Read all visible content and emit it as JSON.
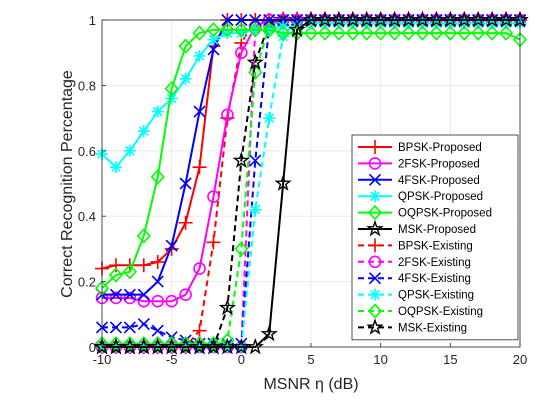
{
  "chart_data": {
    "type": "line",
    "xlabel": "MSNR η (dB)",
    "ylabel": "Correct Recognition Percentage",
    "xlim": [
      -10,
      20
    ],
    "ylim": [
      0,
      1
    ],
    "xticks": [
      -10,
      -5,
      0,
      5,
      10,
      15,
      20
    ],
    "yticks": [
      0,
      0.2,
      0.4,
      0.6,
      0.8,
      1
    ],
    "xtick_labels": [
      "-10",
      "-5",
      "0",
      "5",
      "10",
      "15",
      "20"
    ],
    "ytick_labels": [
      "0",
      "0.2",
      "0.4",
      "0.6",
      "0.8",
      "1"
    ],
    "grid": true,
    "legend_position": "bottom-right",
    "series": [
      {
        "name": "BPSK-Proposed",
        "color": "#ff0000",
        "dash": "solid",
        "marker": "plus",
        "x": [
          -10,
          -9,
          -8,
          -7,
          -6,
          -5,
          -4,
          -3,
          -2,
          -1,
          0,
          1,
          2,
          3,
          4,
          5,
          6,
          7,
          8,
          9,
          10,
          11,
          12,
          13,
          14,
          15,
          16,
          17,
          18,
          19,
          20
        ],
        "y": [
          0.24,
          0.25,
          0.25,
          0.25,
          0.26,
          0.3,
          0.38,
          0.55,
          0.92,
          1,
          1,
          1,
          1,
          1,
          1,
          1,
          1,
          1,
          1,
          1,
          1,
          1,
          1,
          1,
          1,
          1,
          1,
          1,
          1,
          1,
          1
        ]
      },
      {
        "name": "2FSK-Proposed",
        "color": "#ff00ff",
        "dash": "solid",
        "marker": "circle",
        "x": [
          -10,
          -9,
          -8,
          -7,
          -6,
          -5,
          -4,
          -3,
          -2,
          -1,
          0,
          1,
          2,
          3,
          4,
          5,
          6,
          7,
          8,
          9,
          10,
          11,
          12,
          13,
          14,
          15,
          16,
          17,
          18,
          19,
          20
        ],
        "y": [
          0.15,
          0.15,
          0.15,
          0.14,
          0.14,
          0.14,
          0.16,
          0.24,
          0.46,
          0.71,
          0.9,
          0.98,
          1,
          1,
          1,
          1,
          1,
          1,
          1,
          1,
          1,
          1,
          1,
          1,
          1,
          1,
          1,
          1,
          1,
          1,
          1
        ]
      },
      {
        "name": "4FSK-Proposed",
        "color": "#0000ff",
        "dash": "solid",
        "marker": "x",
        "x": [
          -10,
          -9,
          -8,
          -7,
          -6,
          -5,
          -4,
          -3,
          -2,
          -1,
          0,
          1,
          2,
          3,
          4,
          5,
          6,
          7,
          8,
          9,
          10,
          11,
          12,
          13,
          14,
          15,
          16,
          17,
          18,
          19,
          20
        ],
        "y": [
          0.16,
          0.16,
          0.16,
          0.16,
          0.2,
          0.31,
          0.5,
          0.72,
          0.91,
          1,
          1,
          1,
          1,
          1,
          1,
          1,
          1,
          1,
          1,
          1,
          1,
          1,
          1,
          1,
          1,
          1,
          1,
          1,
          1,
          1,
          1
        ]
      },
      {
        "name": "QPSK-Proposed",
        "color": "#00ffff",
        "dash": "solid",
        "marker": "star",
        "x": [
          -10,
          -9,
          -8,
          -7,
          -6,
          -5,
          -4,
          -3,
          -2,
          -1,
          0,
          1,
          2,
          3,
          4,
          5,
          6,
          7,
          8,
          9,
          10,
          11,
          12,
          13,
          14,
          15,
          16,
          17,
          18,
          19,
          20
        ],
        "y": [
          0.59,
          0.55,
          0.6,
          0.66,
          0.72,
          0.76,
          0.82,
          0.89,
          0.94,
          0.96,
          0.96,
          0.97,
          0.97,
          0.98,
          0.98,
          0.99,
          0.99,
          0.99,
          0.99,
          0.99,
          0.99,
          0.99,
          0.99,
          0.99,
          0.99,
          0.99,
          0.99,
          0.99,
          0.99,
          0.99,
          0.99
        ]
      },
      {
        "name": "OQPSK-Proposed",
        "color": "#00ff00",
        "dash": "solid",
        "marker": "diamond",
        "x": [
          -10,
          -9,
          -8,
          -7,
          -6,
          -5,
          -4,
          -3,
          -2,
          -1,
          0,
          1,
          2,
          3,
          4,
          5,
          6,
          7,
          8,
          9,
          10,
          11,
          12,
          13,
          14,
          15,
          16,
          17,
          18,
          19,
          20
        ],
        "y": [
          0.18,
          0.22,
          0.23,
          0.34,
          0.52,
          0.79,
          0.92,
          0.96,
          0.97,
          0.97,
          0.97,
          0.97,
          0.97,
          0.96,
          0.96,
          0.96,
          0.96,
          0.96,
          0.96,
          0.96,
          0.96,
          0.96,
          0.96,
          0.96,
          0.96,
          0.96,
          0.96,
          0.96,
          0.96,
          0.96,
          0.94
        ]
      },
      {
        "name": "MSK-Proposed",
        "color": "#000000",
        "dash": "solid",
        "marker": "pentagram",
        "x": [
          -10,
          -9,
          -8,
          -7,
          -6,
          -5,
          -4,
          -3,
          -2,
          -1,
          0,
          1,
          2,
          3,
          4,
          5,
          6,
          7,
          8,
          9,
          10,
          11,
          12,
          13,
          14,
          15,
          16,
          17,
          18,
          19,
          20
        ],
        "y": [
          0,
          0,
          0,
          0,
          0,
          0,
          0,
          0,
          0,
          0,
          0,
          0,
          0.04,
          0.5,
          0.97,
          1,
          1,
          1,
          1,
          1,
          1,
          1,
          1,
          1,
          1,
          1,
          1,
          1,
          1,
          1,
          1
        ]
      },
      {
        "name": "BPSK-Existing",
        "color": "#ff0000",
        "dash": "dashed",
        "marker": "plus",
        "x": [
          -10,
          -9,
          -8,
          -7,
          -6,
          -5,
          -4,
          -3,
          -2,
          -1,
          0,
          1,
          2,
          3,
          4,
          5,
          6,
          7,
          8,
          9,
          10,
          11,
          12,
          13,
          14,
          15,
          16,
          17,
          18,
          19,
          20
        ],
        "y": [
          0,
          0,
          0,
          0,
          0,
          0,
          0,
          0.05,
          0.32,
          0.7,
          0.93,
          1,
          1,
          1,
          1,
          1,
          1,
          1,
          1,
          1,
          1,
          1,
          1,
          1,
          1,
          1,
          1,
          1,
          1,
          1,
          1
        ]
      },
      {
        "name": "2FSK-Existing",
        "color": "#ff00ff",
        "dash": "dashed",
        "marker": "circle",
        "x": [
          -10,
          -9,
          -8,
          -7,
          -6,
          -5,
          -4,
          -3,
          -2,
          -1,
          0,
          1,
          2,
          3,
          4,
          5,
          6,
          7,
          8,
          9,
          10,
          11,
          12,
          13,
          14,
          15,
          16,
          17,
          18,
          19,
          20
        ],
        "y": [
          0,
          0,
          0,
          0,
          0,
          0,
          0,
          0,
          0,
          0,
          0,
          0.98,
          1,
          1,
          1,
          1,
          1,
          1,
          1,
          1,
          1,
          1,
          1,
          1,
          1,
          1,
          1,
          1,
          1,
          1,
          1
        ]
      },
      {
        "name": "4FSK-Existing",
        "color": "#0000ff",
        "dash": "dashed",
        "marker": "x",
        "x": [
          -10,
          -9,
          -8,
          -7,
          -6,
          -5,
          -4,
          -3,
          -2,
          -1,
          0,
          1,
          2,
          3,
          4,
          5,
          6,
          7,
          8,
          9,
          10,
          11,
          12,
          13,
          14,
          15,
          16,
          17,
          18,
          19,
          20
        ],
        "y": [
          0.06,
          0.06,
          0.06,
          0.07,
          0.05,
          0.03,
          0.02,
          0.01,
          0.01,
          0.01,
          0.01,
          0.57,
          0.98,
          1,
          1,
          1,
          1,
          1,
          1,
          1,
          1,
          1,
          1,
          1,
          1,
          1,
          1,
          1,
          1,
          1,
          1
        ]
      },
      {
        "name": "QPSK-Existing",
        "color": "#00ffff",
        "dash": "dashed",
        "marker": "star",
        "x": [
          -10,
          -9,
          -8,
          -7,
          -6,
          -5,
          -4,
          -3,
          -2,
          -1,
          0,
          1,
          2,
          3,
          4,
          5,
          6,
          7,
          8,
          9,
          10,
          11,
          12,
          13,
          14,
          15,
          16,
          17,
          18,
          19,
          20
        ],
        "y": [
          0,
          0,
          0,
          0,
          0,
          0,
          0,
          0,
          0,
          0,
          0,
          0.42,
          0.7,
          0.95,
          1,
          1,
          1,
          1,
          1,
          1,
          1,
          1,
          1,
          1,
          1,
          1,
          1,
          1,
          1,
          1,
          1
        ]
      },
      {
        "name": "OQPSK-Existing",
        "color": "#00ff00",
        "dash": "dashed",
        "marker": "diamond",
        "x": [
          -10,
          -9,
          -8,
          -7,
          -6,
          -5,
          -4,
          -3,
          -2,
          -1,
          0,
          1,
          2,
          3,
          4,
          5,
          6,
          7,
          8,
          9,
          10,
          11,
          12,
          13,
          14,
          15,
          16,
          17,
          18,
          19,
          20
        ],
        "y": [
          0.01,
          0.01,
          0.01,
          0.01,
          0.01,
          0.01,
          0.01,
          0.01,
          0.01,
          0.02,
          0.3,
          0.84,
          0.98,
          1,
          1,
          1,
          1,
          1,
          1,
          1,
          1,
          1,
          1,
          1,
          1,
          1,
          1,
          1,
          1,
          1,
          1
        ]
      },
      {
        "name": "MSK-Existing",
        "color": "#000000",
        "dash": "dashed",
        "marker": "pentagram",
        "x": [
          -10,
          -9,
          -8,
          -7,
          -6,
          -5,
          -4,
          -3,
          -2,
          -1,
          0,
          1,
          2,
          3,
          4,
          5,
          6,
          7,
          8,
          9,
          10,
          11,
          12,
          13,
          14,
          15,
          16,
          17,
          18,
          19,
          20
        ],
        "y": [
          0,
          0,
          0,
          0,
          0,
          0,
          0,
          0,
          0,
          0.12,
          0.57,
          0.87,
          0.99,
          1,
          1,
          1,
          1,
          1,
          1,
          1,
          1,
          1,
          1,
          1,
          1,
          1,
          1,
          1,
          1,
          1,
          1
        ]
      }
    ]
  }
}
